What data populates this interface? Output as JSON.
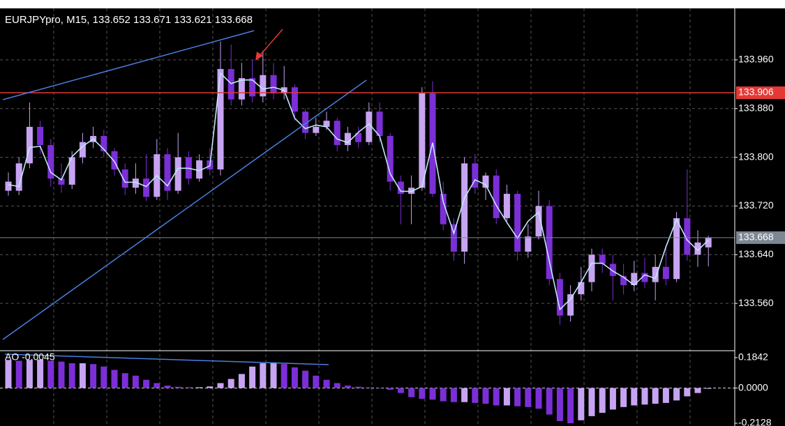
{
  "chart_data": [
    {
      "type": "candlestick",
      "title": "EURJPYpro, M15, 133.652 133.671 133.621 133.668",
      "up_color": "#c7a4f2",
      "down_color": "#7b2fd6",
      "grid": true,
      "open": [
        133.745,
        133.745,
        133.79,
        133.85,
        133.82,
        133.765,
        133.755,
        133.8,
        133.825,
        133.835,
        133.81,
        133.78,
        133.75,
        133.765,
        133.735,
        133.805,
        133.745,
        133.8,
        133.765,
        133.795,
        133.78,
        133.945,
        133.895,
        133.93,
        133.9,
        133.935,
        133.905,
        133.915,
        133.875,
        133.84,
        133.85,
        133.86,
        133.82,
        133.84,
        133.825,
        133.875,
        133.835,
        133.76,
        133.74,
        133.75,
        133.905,
        133.74,
        133.69,
        133.645,
        133.79,
        133.75,
        133.77,
        133.7,
        133.74,
        133.645,
        133.67,
        133.72,
        133.6,
        133.54,
        133.575,
        133.595,
        133.64,
        133.625,
        133.605,
        133.59,
        133.61,
        133.595,
        133.62,
        133.6,
        133.7,
        133.64,
        133.652
      ],
      "high": [
        133.775,
        133.8,
        133.89,
        133.86,
        133.83,
        133.79,
        133.81,
        133.84,
        133.85,
        133.845,
        133.815,
        133.79,
        133.79,
        133.805,
        133.83,
        133.815,
        133.84,
        133.81,
        133.805,
        133.815,
        133.99,
        133.985,
        133.955,
        133.96,
        133.975,
        133.955,
        133.95,
        133.92,
        133.88,
        133.865,
        133.875,
        133.865,
        133.85,
        133.85,
        133.89,
        133.89,
        133.84,
        133.77,
        133.77,
        133.915,
        133.925,
        133.76,
        133.7,
        133.8,
        133.805,
        133.775,
        133.78,
        133.755,
        133.745,
        133.69,
        133.745,
        133.73,
        133.61,
        133.59,
        133.62,
        133.65,
        133.65,
        133.64,
        133.625,
        133.63,
        133.635,
        133.64,
        133.65,
        133.71,
        133.78,
        133.68,
        133.671
      ],
      "low": [
        133.737,
        133.738,
        133.782,
        133.805,
        133.752,
        133.742,
        133.748,
        133.79,
        133.815,
        133.8,
        133.77,
        133.738,
        133.74,
        133.728,
        133.73,
        133.73,
        133.74,
        133.755,
        133.76,
        133.77,
        133.77,
        133.885,
        133.885,
        133.89,
        133.89,
        133.895,
        133.895,
        133.86,
        133.83,
        133.835,
        133.845,
        133.81,
        133.81,
        133.815,
        133.82,
        133.825,
        133.745,
        133.69,
        133.69,
        133.745,
        133.735,
        133.68,
        133.63,
        133.625,
        133.74,
        133.73,
        133.69,
        133.695,
        133.63,
        133.635,
        133.665,
        133.59,
        133.525,
        133.53,
        133.565,
        133.58,
        133.61,
        133.565,
        133.575,
        133.58,
        133.585,
        133.565,
        133.59,
        133.595,
        133.63,
        133.62,
        133.621
      ],
      "close": [
        133.76,
        133.79,
        133.85,
        133.82,
        133.765,
        133.755,
        133.8,
        133.825,
        133.835,
        133.81,
        133.78,
        133.75,
        133.765,
        133.735,
        133.805,
        133.745,
        133.8,
        133.765,
        133.795,
        133.78,
        133.945,
        133.895,
        133.93,
        133.9,
        133.935,
        133.905,
        133.915,
        133.875,
        133.84,
        133.85,
        133.86,
        133.82,
        133.84,
        133.825,
        133.875,
        133.835,
        133.76,
        133.74,
        133.75,
        133.905,
        133.74,
        133.69,
        133.645,
        133.79,
        133.75,
        133.77,
        133.7,
        133.74,
        133.645,
        133.67,
        133.72,
        133.6,
        133.54,
        133.575,
        133.595,
        133.64,
        133.625,
        133.605,
        133.59,
        133.61,
        133.595,
        133.62,
        133.6,
        133.7,
        133.64,
        133.66,
        133.668
      ],
      "ma": {
        "color": "#bfe8f7",
        "values": [
          133.755,
          133.752,
          133.816,
          133.818,
          133.775,
          133.763,
          133.801,
          133.818,
          133.83,
          133.813,
          133.793,
          133.759,
          133.759,
          133.752,
          133.77,
          133.753,
          133.782,
          133.782,
          133.778,
          133.786,
          133.938,
          133.921,
          133.927,
          133.927,
          133.912,
          133.915,
          133.91,
          133.864,
          133.847,
          133.853,
          133.85,
          133.83,
          133.824,
          133.841,
          133.855,
          133.835,
          133.773,
          133.744,
          133.744,
          133.752,
          133.824,
          133.727,
          133.675,
          133.733,
          133.763,
          133.755,
          133.721,
          133.693,
          133.667,
          133.695,
          133.71,
          133.63,
          133.55,
          133.567,
          133.595,
          133.626,
          133.626,
          133.613,
          133.603,
          133.59,
          133.607,
          133.601,
          133.653,
          133.698,
          133.664,
          133.647,
          133.664
        ]
      },
      "ylim": [
        133.4823,
        134.0446
      ],
      "yticks": [
        {
          "value": 133.56,
          "label": "133.560"
        },
        {
          "value": 133.64,
          "label": "133.640"
        },
        {
          "value": 133.72,
          "label": "133.720"
        },
        {
          "value": 133.8,
          "label": "133.800"
        },
        {
          "value": 133.88,
          "label": "133.880"
        },
        {
          "value": 133.96,
          "label": "133.960"
        }
      ],
      "hline": {
        "value": 133.906,
        "color": "#e53935"
      },
      "last_price": {
        "value": 133.668,
        "color": "#7d8793"
      }
    },
    {
      "type": "bar",
      "label": "AO -0.0045",
      "up_color": "#c7a4f2",
      "down_color": "#7b2fd6",
      "values": [
        0.17,
        0.165,
        0.17,
        0.172,
        0.165,
        0.16,
        0.15,
        0.15,
        0.145,
        0.13,
        0.11,
        0.09,
        0.075,
        0.05,
        0.03,
        0.015,
        0.008,
        0.005,
        0.005,
        0.01,
        0.03,
        0.055,
        0.085,
        0.13,
        0.15,
        0.155,
        0.145,
        0.125,
        0.105,
        0.075,
        0.05,
        0.03,
        0.015,
        0.008,
        0.004,
        0.002,
        -0.01,
        -0.03,
        -0.055,
        -0.065,
        -0.07,
        -0.08,
        -0.085,
        -0.085,
        -0.09,
        -0.095,
        -0.105,
        -0.105,
        -0.11,
        -0.115,
        -0.125,
        -0.16,
        -0.2,
        -0.213,
        -0.195,
        -0.17,
        -0.15,
        -0.13,
        -0.115,
        -0.105,
        -0.1,
        -0.095,
        -0.09,
        -0.075,
        -0.05,
        -0.03,
        -0.0045
      ],
      "ylim": [
        -0.2296,
        0.226
      ],
      "yticks": [
        0.1842,
        {
          "value": 0,
          "label": "0.0000"
        },
        -0.2128
      ]
    }
  ]
}
